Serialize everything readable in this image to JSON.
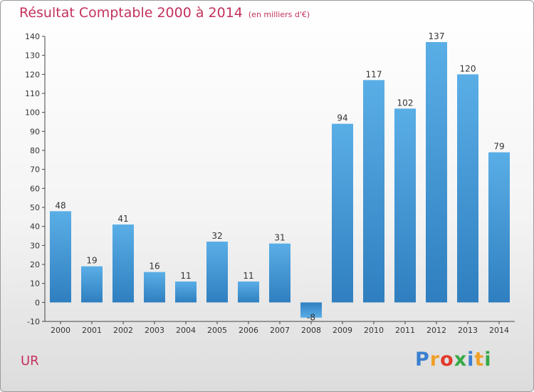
{
  "header": {
    "title": "Résultat Comptable 2000 à 2014",
    "unit": "(en milliers d'€)"
  },
  "footer": {
    "commune": "UR",
    "logo_text": "Proxiti"
  },
  "colors": {
    "bar_light": "#5aaee6",
    "bar_dark": "#2f86c6",
    "title": "#c4315b"
  },
  "chart_data": {
    "type": "bar",
    "title": "Résultat Comptable 2000 à 2014",
    "subtitle": "(en milliers d'€)",
    "xlabel": "",
    "ylabel": "",
    "categories": [
      "2000",
      "2001",
      "2002",
      "2003",
      "2004",
      "2005",
      "2006",
      "2007",
      "2008",
      "2009",
      "2010",
      "2011",
      "2012",
      "2013",
      "2014"
    ],
    "values": [
      48,
      19,
      41,
      16,
      11,
      32,
      11,
      31,
      -8,
      94,
      117,
      102,
      137,
      120,
      79
    ],
    "ylim": [
      -10,
      140
    ],
    "yticks": [
      -10,
      0,
      10,
      20,
      30,
      40,
      50,
      60,
      70,
      80,
      90,
      100,
      110,
      120,
      130,
      140
    ],
    "grid": false,
    "legend": "none"
  }
}
